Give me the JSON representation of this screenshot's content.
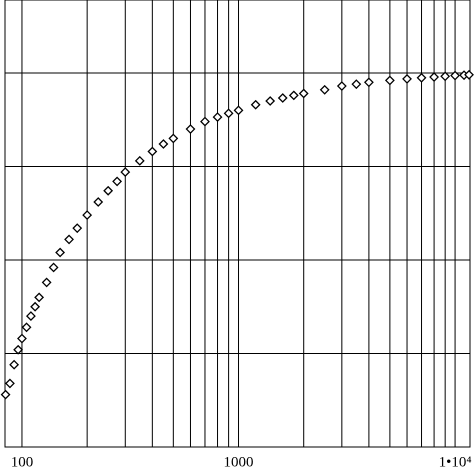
{
  "chart_data": {
    "type": "scatter",
    "x": [
      84,
      88,
      92,
      96,
      100,
      105,
      110,
      115,
      120,
      130,
      140,
      150,
      165,
      180,
      200,
      225,
      250,
      275,
      300,
      350,
      400,
      450,
      500,
      600,
      700,
      800,
      900,
      1000,
      1200,
      1400,
      1600,
      1800,
      2000,
      2500,
      3000,
      3500,
      4000,
      5000,
      6000,
      7000,
      8000,
      9000,
      10000,
      11000,
      11600
    ],
    "values": [
      0.14,
      0.17,
      0.22,
      0.26,
      0.29,
      0.32,
      0.35,
      0.375,
      0.4,
      0.44,
      0.48,
      0.52,
      0.555,
      0.585,
      0.62,
      0.655,
      0.685,
      0.71,
      0.735,
      0.765,
      0.79,
      0.81,
      0.825,
      0.85,
      0.87,
      0.882,
      0.892,
      0.9,
      0.915,
      0.925,
      0.933,
      0.94,
      0.945,
      0.955,
      0.965,
      0.97,
      0.975,
      0.98,
      0.984,
      0.987,
      0.989,
      0.991,
      0.993,
      0.994,
      0.995
    ],
    "color": "#000000",
    "xlog": true,
    "xlim": [
      83.5,
      11720
    ],
    "xticks": [
      100,
      1000,
      {
        "value": 10000,
        "label": "1•10⁴"
      }
    ],
    "xminor_ticks": [
      200,
      300,
      400,
      500,
      600,
      700,
      800,
      900,
      2000,
      3000,
      4000,
      5000,
      6000,
      7000,
      8000,
      9000
    ],
    "ylim": [
      0,
      1.195
    ],
    "yticks": [
      0,
      0.25,
      0.5,
      0.75,
      1
    ],
    "grid": true
  }
}
